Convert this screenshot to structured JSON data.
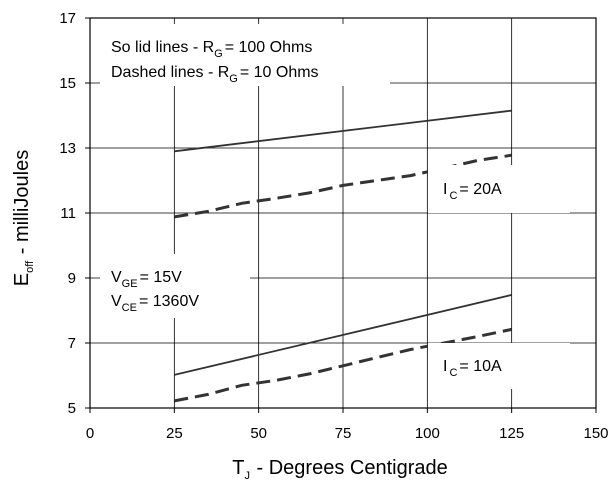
{
  "chart_data": {
    "type": "line",
    "xlabel": {
      "main": "T",
      "sub": "J",
      "rest": " - Degrees Centigrade"
    },
    "ylabel": {
      "main": "E",
      "sub": "off",
      "rest": " - milliJoules"
    },
    "xlim": [
      0,
      150
    ],
    "ylim": [
      5,
      17
    ],
    "xticks": [
      0,
      25,
      50,
      75,
      100,
      125,
      150
    ],
    "yticks": [
      5,
      7,
      9,
      11,
      13,
      15,
      17
    ],
    "grid": true,
    "series": [
      {
        "style": "solid",
        "group": "IC=20A",
        "x": [
          25,
          125
        ],
        "y": [
          12.9,
          14.15
        ]
      },
      {
        "style": "dashed",
        "group": "IC=20A",
        "x": [
          25,
          35,
          45,
          55,
          65,
          75,
          85,
          95,
          105,
          115,
          125
        ],
        "y": [
          10.88,
          11.05,
          11.3,
          11.45,
          11.62,
          11.85,
          12.0,
          12.15,
          12.38,
          12.62,
          12.78
        ]
      },
      {
        "style": "solid",
        "group": "IC=10A",
        "x": [
          25,
          125
        ],
        "y": [
          6.02,
          8.48
        ]
      },
      {
        "style": "dashed",
        "group": "IC=10A",
        "x": [
          25,
          35,
          45,
          55,
          65,
          75,
          85,
          95,
          105,
          115,
          125
        ],
        "y": [
          5.22,
          5.42,
          5.7,
          5.85,
          6.05,
          6.3,
          6.55,
          6.8,
          7.0,
          7.2,
          7.42
        ]
      }
    ],
    "annotations": {
      "legend_solid": {
        "pre": "So lid lines - R",
        "sub": "G",
        "post": "= 100 Ohms"
      },
      "legend_dashed": {
        "pre": "Dashed lines - R",
        "sub": "G",
        "post": "= 10 Ohms"
      },
      "vge": {
        "pre": "V",
        "sub": "GE",
        "post": "= 15V"
      },
      "vce": {
        "pre": "V",
        "sub": "CE",
        "post": "= 1360V"
      },
      "ic20": {
        "pre": "I",
        "sub": "C",
        "post": "= 20A"
      },
      "ic10": {
        "pre": "I",
        "sub": "C",
        "post": "= 10A"
      }
    },
    "colors": {
      "line": "#333333",
      "axis": "#000000",
      "grid": "#000000"
    }
  }
}
